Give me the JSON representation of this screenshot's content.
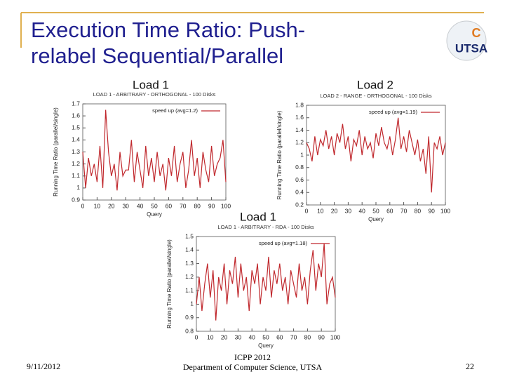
{
  "header": {
    "title": "Execution Time Ratio: Push-relabel Sequential/Parallel"
  },
  "logo": {
    "letter": "C",
    "text": "UTSA"
  },
  "chart_data": [
    {
      "type": "line",
      "label": "Load 1",
      "title": "LOAD 1 - ARBITRARY - ORTHOGONAL - 100 Disks",
      "xlabel": "Query",
      "ylabel": "Running Time Ratio (parallel/single)",
      "x": [
        0,
        2,
        4,
        6,
        8,
        10,
        12,
        14,
        16,
        18,
        20,
        22,
        24,
        26,
        28,
        30,
        32,
        34,
        36,
        38,
        40,
        42,
        44,
        46,
        48,
        50,
        52,
        54,
        56,
        58,
        60,
        62,
        64,
        66,
        68,
        70,
        72,
        74,
        76,
        78,
        80,
        82,
        84,
        86,
        88,
        90,
        92,
        94,
        96,
        98,
        100
      ],
      "series": [
        {
          "name": "speed up (avg=1.2)",
          "color": "#c0282d",
          "values": [
            1.3,
            1.0,
            1.25,
            1.1,
            1.2,
            1.05,
            1.35,
            1.0,
            1.65,
            1.3,
            1.1,
            1.2,
            0.98,
            1.3,
            1.1,
            1.15,
            1.15,
            1.4,
            1.05,
            1.3,
            1.15,
            1.0,
            1.35,
            1.1,
            1.25,
            1.05,
            1.3,
            1.1,
            1.2,
            0.98,
            1.25,
            1.1,
            1.35,
            1.05,
            1.2,
            1.3,
            1.0,
            1.15,
            1.4,
            1.1,
            1.25,
            1.0,
            1.3,
            1.15,
            1.05,
            1.35,
            1.1,
            1.2,
            1.25,
            1.4,
            1.05
          ]
        }
      ],
      "xlim": [
        0,
        100
      ],
      "xticks": [
        0,
        10,
        20,
        30,
        40,
        50,
        60,
        70,
        80,
        90,
        100
      ],
      "ylim": [
        0.9,
        1.7
      ],
      "yticks": [
        0.9,
        1,
        1.1,
        1.2,
        1.3,
        1.4,
        1.5,
        1.6,
        1.7
      ]
    },
    {
      "type": "line",
      "label": "Load 2",
      "title": "LOAD 2 - RANGE - ORTHOGONAL - 100 Disks",
      "xlabel": "Query",
      "ylabel": "Running Time Ratio (parallel/single)",
      "x": [
        0,
        2,
        4,
        6,
        8,
        10,
        12,
        14,
        16,
        18,
        20,
        22,
        24,
        26,
        28,
        30,
        32,
        34,
        36,
        38,
        40,
        42,
        44,
        46,
        48,
        50,
        52,
        54,
        56,
        58,
        60,
        62,
        64,
        66,
        68,
        70,
        72,
        74,
        76,
        78,
        80,
        82,
        84,
        86,
        88,
        90,
        92,
        94,
        96,
        98,
        100
      ],
      "series": [
        {
          "name": "speed up (avg=1.19)",
          "color": "#c0282d",
          "values": [
            1.2,
            1.1,
            0.9,
            1.3,
            1.0,
            1.25,
            1.15,
            1.4,
            1.1,
            1.3,
            1.0,
            1.35,
            1.2,
            1.5,
            1.1,
            1.3,
            0.9,
            1.25,
            1.15,
            1.4,
            1.0,
            1.3,
            1.1,
            1.2,
            0.95,
            1.35,
            1.15,
            1.45,
            1.2,
            1.1,
            1.3,
            1.0,
            1.25,
            1.6,
            1.1,
            1.3,
            1.05,
            1.4,
            1.2,
            1.0,
            1.25,
            0.9,
            1.1,
            0.7,
            1.3,
            0.4,
            1.2,
            1.1,
            1.3,
            1.0,
            1.2
          ]
        }
      ],
      "xlim": [
        0,
        100
      ],
      "xticks": [
        0,
        10,
        20,
        30,
        40,
        50,
        60,
        70,
        80,
        90,
        100
      ],
      "ylim": [
        0.2,
        1.8
      ],
      "yticks": [
        0.2,
        0.4,
        0.6,
        0.8,
        1,
        1.2,
        1.4,
        1.6,
        1.8
      ]
    },
    {
      "type": "line",
      "label": "Load 1",
      "title": "LOAD 1 - ARBITRARY - RDA - 100 Disks",
      "xlabel": "Query",
      "ylabel": "Running Time Ratio (parallel/single)",
      "x": [
        0,
        2,
        4,
        6,
        8,
        10,
        12,
        14,
        16,
        18,
        20,
        22,
        24,
        26,
        28,
        30,
        32,
        34,
        36,
        38,
        40,
        42,
        44,
        46,
        48,
        50,
        52,
        54,
        56,
        58,
        60,
        62,
        64,
        66,
        68,
        70,
        72,
        74,
        76,
        78,
        80,
        82,
        84,
        86,
        88,
        90,
        92,
        94,
        96,
        98,
        100
      ],
      "series": [
        {
          "name": "speed up (avg=1.18)",
          "color": "#c0282d",
          "values": [
            1.0,
            1.2,
            0.95,
            1.15,
            1.3,
            1.05,
            1.25,
            0.88,
            1.2,
            1.1,
            1.3,
            1.0,
            1.25,
            1.15,
            1.35,
            1.05,
            1.3,
            1.1,
            1.2,
            0.95,
            1.25,
            1.15,
            1.3,
            1.0,
            1.2,
            1.1,
            1.35,
            1.05,
            1.25,
            1.15,
            1.3,
            1.1,
            1.2,
            1.0,
            1.25,
            1.15,
            1.05,
            1.3,
            1.1,
            1.2,
            1.0,
            1.25,
            1.4,
            1.1,
            1.3,
            1.2,
            1.45,
            1.0,
            1.15,
            1.2,
            1.05
          ]
        }
      ],
      "xlim": [
        0,
        100
      ],
      "xticks": [
        0,
        10,
        20,
        30,
        40,
        50,
        60,
        70,
        80,
        90,
        100
      ],
      "ylim": [
        0.8,
        1.5
      ],
      "yticks": [
        0.8,
        0.9,
        1,
        1.1,
        1.2,
        1.3,
        1.4,
        1.5
      ]
    }
  ],
  "footer": {
    "date": "9/11/2012",
    "conference": "ICPP 2012",
    "department": "Department of Computer Science, UTSA",
    "page": "22"
  }
}
